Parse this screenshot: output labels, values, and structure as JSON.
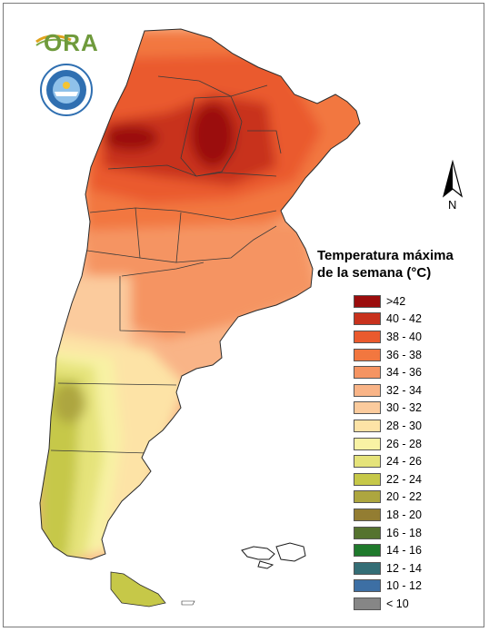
{
  "logo": {
    "text": "ORA"
  },
  "seal": {
    "name": "seal-icon"
  },
  "north_arrow": {
    "label": "N"
  },
  "legend": {
    "title_line1": "Temperatura máxima",
    "title_line2": "de la semana (°C)",
    "items": [
      {
        "label": ">42",
        "color": "#9b0d0d"
      },
      {
        "label": "40 - 42",
        "color": "#c8321d"
      },
      {
        "label": "38 - 40",
        "color": "#ea5a2d"
      },
      {
        "label": "36 - 38",
        "color": "#f2773f"
      },
      {
        "label": "34 - 36",
        "color": "#f59462"
      },
      {
        "label": "32 - 34",
        "color": "#f9b487"
      },
      {
        "label": "30 - 32",
        "color": "#fbcb9d"
      },
      {
        "label": "28 - 30",
        "color": "#fde3a6"
      },
      {
        "label": "26 - 28",
        "color": "#f8f2a4"
      },
      {
        "label": "24 - 26",
        "color": "#e5e37a"
      },
      {
        "label": "22 - 24",
        "color": "#c6c848"
      },
      {
        "label": "20 - 22",
        "color": "#ada63f"
      },
      {
        "label": "18 - 20",
        "color": "#937d32"
      },
      {
        "label": "16 - 18",
        "color": "#55732f"
      },
      {
        "label": "14 - 16",
        "color": "#1f7a2c"
      },
      {
        "label": "12 - 14",
        "color": "#346e76"
      },
      {
        "label": "10 - 12",
        "color": "#3d6fa4"
      },
      {
        "label": "< 10",
        "color": "#868686"
      }
    ]
  }
}
